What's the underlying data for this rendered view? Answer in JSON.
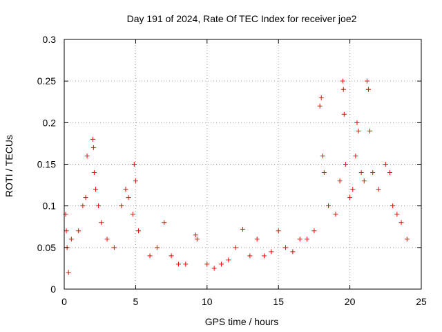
{
  "chart_data": {
    "type": "scatter",
    "title": "Day 191 of 2024, Rate Of TEC Index for receiver joe2",
    "xlabel": "GPS time / hours",
    "ylabel": "ROTI / TECUs",
    "xlim": [
      0,
      25
    ],
    "ylim": [
      0,
      0.3
    ],
    "xticks": [
      0,
      5,
      10,
      15,
      20,
      25
    ],
    "xtick_labels": [
      "0",
      "5",
      "10",
      "15",
      "20",
      "25"
    ],
    "yticks": [
      0,
      0.05,
      0.1,
      0.15,
      0.2,
      0.25,
      0.3
    ],
    "ytick_labels": [
      "0",
      "0.05",
      "0.1",
      "0.15",
      "0.2",
      "0.25",
      "0.3"
    ],
    "grid": true,
    "marker": "plus",
    "color": "#ff0000",
    "series": [
      {
        "name": "ROTI",
        "points": [
          [
            0.1,
            0.09
          ],
          [
            0.15,
            0.07
          ],
          [
            0.2,
            0.05
          ],
          [
            0.3,
            0.02
          ],
          [
            0.5,
            0.06
          ],
          [
            1.0,
            0.07
          ],
          [
            1.3,
            0.1
          ],
          [
            1.5,
            0.11
          ],
          [
            1.6,
            0.16
          ],
          [
            2.0,
            0.18
          ],
          [
            2.05,
            0.17
          ],
          [
            2.1,
            0.14
          ],
          [
            2.2,
            0.12
          ],
          [
            2.4,
            0.1
          ],
          [
            2.6,
            0.08
          ],
          [
            3.0,
            0.06
          ],
          [
            3.5,
            0.05
          ],
          [
            4.0,
            0.1
          ],
          [
            4.3,
            0.12
          ],
          [
            4.5,
            0.11
          ],
          [
            4.8,
            0.09
          ],
          [
            4.9,
            0.15
          ],
          [
            5.0,
            0.13
          ],
          [
            5.2,
            0.07
          ],
          [
            6.0,
            0.04
          ],
          [
            6.5,
            0.05
          ],
          [
            7.0,
            0.08
          ],
          [
            7.5,
            0.04
          ],
          [
            8.0,
            0.03
          ],
          [
            8.5,
            0.03
          ],
          [
            9.2,
            0.065
          ],
          [
            9.3,
            0.06
          ],
          [
            10.0,
            0.03
          ],
          [
            10.5,
            0.025
          ],
          [
            11.0,
            0.03
          ],
          [
            11.5,
            0.035
          ],
          [
            12.0,
            0.05
          ],
          [
            12.5,
            0.072
          ],
          [
            13.0,
            0.04
          ],
          [
            13.5,
            0.06
          ],
          [
            14.0,
            0.04
          ],
          [
            14.5,
            0.045
          ],
          [
            15.0,
            0.07
          ],
          [
            15.5,
            0.05
          ],
          [
            16.0,
            0.045
          ],
          [
            16.5,
            0.06
          ],
          [
            17.0,
            0.06
          ],
          [
            17.5,
            0.07
          ],
          [
            17.9,
            0.22
          ],
          [
            18.0,
            0.23
          ],
          [
            18.1,
            0.16
          ],
          [
            18.2,
            0.14
          ],
          [
            18.5,
            0.1
          ],
          [
            19.0,
            0.09
          ],
          [
            19.3,
            0.13
          ],
          [
            19.5,
            0.25
          ],
          [
            19.55,
            0.24
          ],
          [
            19.6,
            0.21
          ],
          [
            19.7,
            0.15
          ],
          [
            20.0,
            0.11
          ],
          [
            20.2,
            0.12
          ],
          [
            20.4,
            0.16
          ],
          [
            20.5,
            0.2
          ],
          [
            20.6,
            0.19
          ],
          [
            20.8,
            0.14
          ],
          [
            21.0,
            0.13
          ],
          [
            21.2,
            0.25
          ],
          [
            21.3,
            0.24
          ],
          [
            21.4,
            0.19
          ],
          [
            21.6,
            0.14
          ],
          [
            22.0,
            0.12
          ],
          [
            22.5,
            0.15
          ],
          [
            22.8,
            0.14
          ],
          [
            23.0,
            0.1
          ],
          [
            23.3,
            0.09
          ],
          [
            23.6,
            0.08
          ],
          [
            24.0,
            0.06
          ]
        ]
      }
    ]
  }
}
